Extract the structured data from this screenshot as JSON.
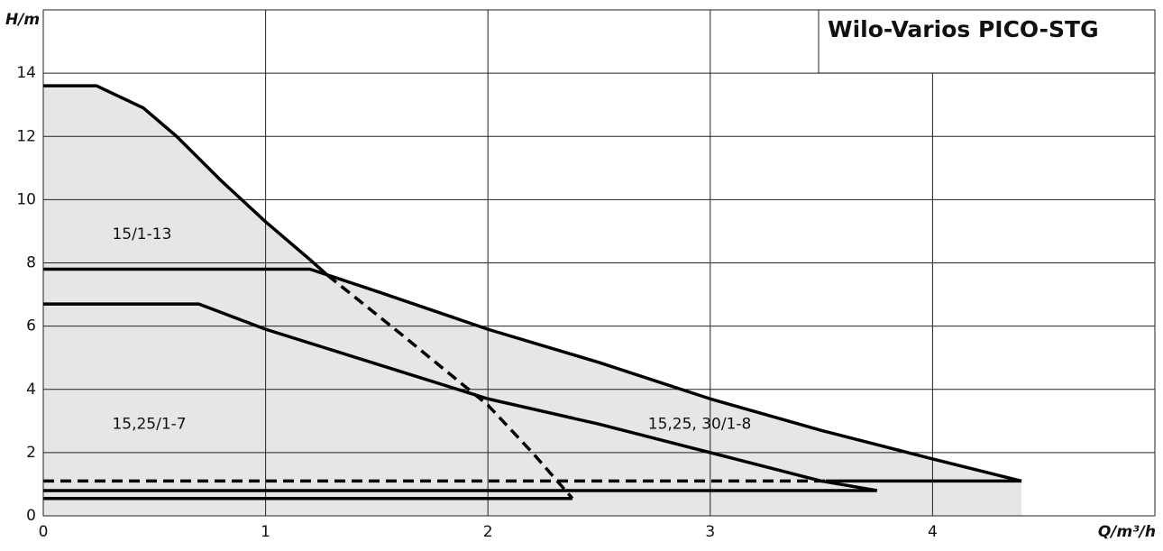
{
  "chart_data": {
    "type": "line",
    "title": "Wilo-Varios PICO-STG",
    "x_label": "Q/m³/h",
    "y_label": "H/m",
    "xlim": [
      0,
      5
    ],
    "ylim": [
      0,
      16
    ],
    "xticks": [
      0,
      1,
      2,
      3,
      4
    ],
    "yticks": [
      0,
      2,
      4,
      6,
      8,
      10,
      12,
      14
    ],
    "grid": true,
    "series": [
      {
        "color": "#000000",
        "dash": false,
        "fill": "#e6e6e6",
        "x": [
          0,
          0.24,
          0.45,
          0.6,
          0.8,
          1.0,
          1.2,
          1.28
        ],
        "values": [
          13.6,
          13.6,
          12.9,
          12.0,
          10.6,
          9.3,
          8.1,
          7.6
        ]
      },
      {
        "color": "#000000",
        "dash": true,
        "x": [
          1.28,
          1.6,
          2.0,
          2.2,
          2.38
        ],
        "values": [
          7.6,
          5.8,
          3.5,
          2.0,
          0.55
        ]
      },
      {
        "color": "#000000",
        "dash": false,
        "x": [
          0,
          2.38
        ],
        "values": [
          0.55,
          0.55
        ]
      },
      {
        "color": "#000000",
        "dash": false,
        "fill": "#e6e6e6",
        "x": [
          0,
          1.2,
          1.5,
          2.0,
          2.5,
          3.0,
          3.5,
          4.0,
          4.4
        ],
        "values": [
          7.8,
          7.8,
          7.1,
          5.9,
          4.85,
          3.7,
          2.7,
          1.8,
          1.1
        ]
      },
      {
        "color": "#000000",
        "dash": true,
        "x": [
          0,
          3.52
        ],
        "values": [
          1.1,
          1.1
        ]
      },
      {
        "color": "#000000",
        "dash": false,
        "x": [
          3.52,
          4.4
        ],
        "values": [
          1.1,
          1.1
        ]
      },
      {
        "color": "#000000",
        "dash": false,
        "fill": "#e6e6e6",
        "x": [
          0,
          0.7,
          1.0,
          1.5,
          2.0,
          2.5,
          3.0,
          3.5,
          3.75
        ],
        "values": [
          6.7,
          6.7,
          5.9,
          4.8,
          3.7,
          2.9,
          2.0,
          1.1,
          0.8
        ]
      },
      {
        "color": "#000000",
        "dash": false,
        "x": [
          0,
          3.75
        ],
        "values": [
          0.8,
          0.8
        ]
      }
    ],
    "annotations": [
      {
        "text": "15/1-13",
        "x": 0.31,
        "y": 8.9
      },
      {
        "text": "15,25/1-7",
        "x": 0.31,
        "y": 2.9
      },
      {
        "text": "15,25, 30/1-8",
        "x": 2.72,
        "y": 2.9
      }
    ]
  }
}
